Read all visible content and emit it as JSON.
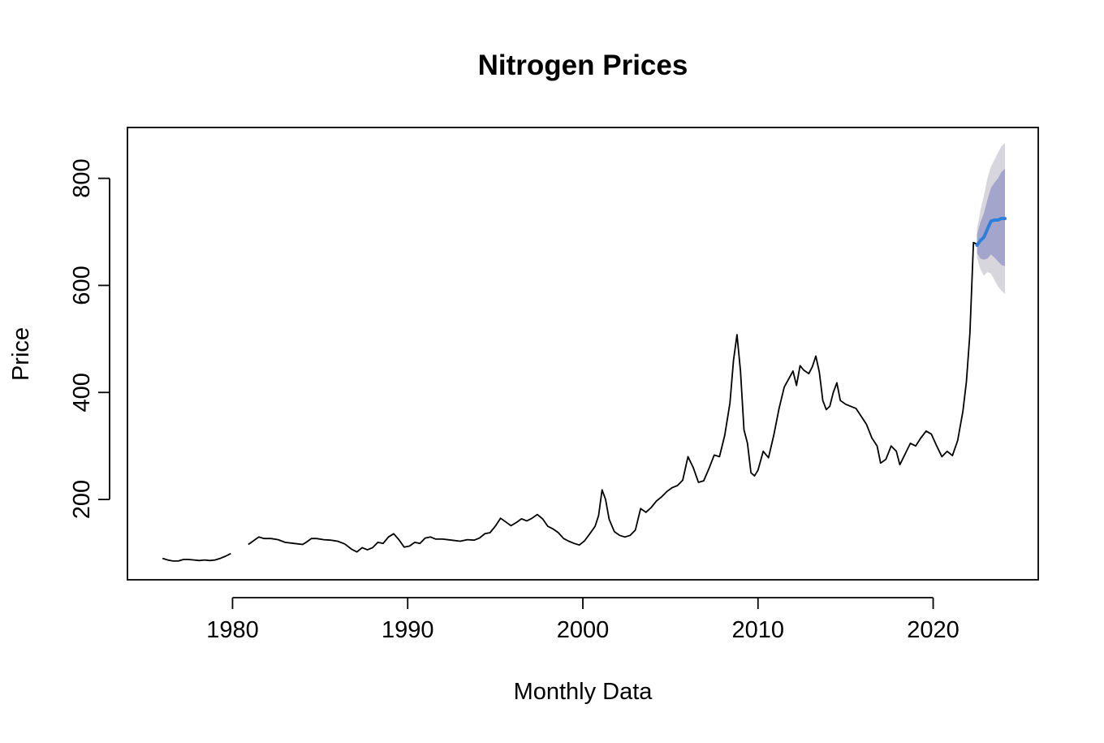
{
  "chart_data": {
    "type": "line",
    "title": "Nitrogen Prices",
    "xlabel": "Monthly Data",
    "ylabel": "Price",
    "xlim": [
      1974,
      2026
    ],
    "ylim": [
      50,
      895
    ],
    "x_ticks": [
      1980,
      1990,
      2000,
      2010,
      2020
    ],
    "y_ticks": [
      200,
      400,
      600,
      800
    ],
    "grid": false,
    "legend": "none",
    "colors": {
      "history": "#000000",
      "forecast": "#2f7ed8",
      "band_95": "#d6d6dc",
      "band_80": "#a3a5cc"
    },
    "series": [
      {
        "role": "history",
        "segments": [
          [
            [
              1976.0,
              90
            ],
            [
              1976.3,
              87
            ],
            [
              1976.6,
              85
            ],
            [
              1976.9,
              85
            ],
            [
              1977.2,
              88
            ],
            [
              1977.5,
              88
            ],
            [
              1977.8,
              87
            ],
            [
              1978.1,
              86
            ],
            [
              1978.4,
              87
            ],
            [
              1978.7,
              86
            ],
            [
              1979.0,
              87
            ],
            [
              1979.3,
              90
            ],
            [
              1979.6,
              94
            ],
            [
              1979.9,
              99
            ]
          ],
          [
            [
              1980.9,
              116
            ],
            [
              1981.2,
              123
            ],
            [
              1981.5,
              130
            ],
            [
              1981.8,
              127
            ],
            [
              1982.2,
              127
            ],
            [
              1982.6,
              125
            ],
            [
              1983.0,
              120
            ],
            [
              1983.5,
              118
            ],
            [
              1984.0,
              116
            ],
            [
              1984.2,
              120
            ],
            [
              1984.5,
              127
            ],
            [
              1984.8,
              127
            ],
            [
              1985.2,
              125
            ],
            [
              1985.6,
              124
            ],
            [
              1986.0,
              122
            ],
            [
              1986.4,
              117
            ],
            [
              1986.8,
              107
            ],
            [
              1987.1,
              102
            ],
            [
              1987.4,
              110
            ],
            [
              1987.7,
              106
            ],
            [
              1988.0,
              110
            ],
            [
              1988.3,
              120
            ],
            [
              1988.6,
              118
            ],
            [
              1988.9,
              130
            ],
            [
              1989.2,
              136
            ],
            [
              1989.5,
              125
            ],
            [
              1989.8,
              111
            ],
            [
              1990.1,
              113
            ],
            [
              1990.4,
              120
            ],
            [
              1990.7,
              118
            ],
            [
              1991.0,
              128
            ],
            [
              1991.3,
              130
            ],
            [
              1991.6,
              126
            ],
            [
              1992.0,
              126
            ],
            [
              1992.5,
              124
            ],
            [
              1993.0,
              122
            ],
            [
              1993.4,
              125
            ],
            [
              1993.8,
              124
            ],
            [
              1994.1,
              128
            ],
            [
              1994.4,
              136
            ],
            [
              1994.7,
              138
            ],
            [
              1995.0,
              150
            ],
            [
              1995.3,
              165
            ],
            [
              1995.6,
              158
            ],
            [
              1995.9,
              151
            ],
            [
              1996.2,
              157
            ],
            [
              1996.5,
              164
            ],
            [
              1996.8,
              160
            ],
            [
              1997.1,
              165
            ],
            [
              1997.4,
              172
            ],
            [
              1997.7,
              164
            ],
            [
              1998.0,
              150
            ],
            [
              1998.3,
              145
            ],
            [
              1998.6,
              138
            ],
            [
              1998.9,
              127
            ],
            [
              1999.2,
              122
            ],
            [
              1999.5,
              118
            ],
            [
              1999.8,
              115
            ],
            [
              2000.1,
              123
            ],
            [
              2000.4,
              136
            ],
            [
              2000.7,
              150
            ],
            [
              2000.9,
              170
            ],
            [
              2001.1,
              218
            ],
            [
              2001.3,
              200
            ],
            [
              2001.5,
              163
            ],
            [
              2001.8,
              140
            ],
            [
              2002.1,
              133
            ],
            [
              2002.4,
              130
            ],
            [
              2002.7,
              133
            ],
            [
              2003.0,
              143
            ],
            [
              2003.3,
              183
            ],
            [
              2003.6,
              176
            ],
            [
              2003.9,
              185
            ],
            [
              2004.2,
              197
            ],
            [
              2004.5,
              205
            ],
            [
              2004.8,
              215
            ],
            [
              2005.1,
              222
            ],
            [
              2005.4,
              226
            ],
            [
              2005.7,
              236
            ],
            [
              2006.0,
              280
            ],
            [
              2006.3,
              260
            ],
            [
              2006.6,
              232
            ],
            [
              2006.9,
              235
            ],
            [
              2007.2,
              258
            ],
            [
              2007.5,
              283
            ],
            [
              2007.8,
              280
            ],
            [
              2008.1,
              320
            ],
            [
              2008.4,
              380
            ],
            [
              2008.6,
              460
            ],
            [
              2008.8,
              508
            ],
            [
              2009.0,
              440
            ],
            [
              2009.2,
              330
            ],
            [
              2009.4,
              305
            ],
            [
              2009.6,
              250
            ],
            [
              2009.8,
              244
            ],
            [
              2010.0,
              255
            ],
            [
              2010.3,
              290
            ],
            [
              2010.6,
              278
            ],
            [
              2010.9,
              320
            ],
            [
              2011.2,
              370
            ],
            [
              2011.5,
              410
            ],
            [
              2011.8,
              428
            ],
            [
              2012.0,
              440
            ],
            [
              2012.2,
              413
            ],
            [
              2012.4,
              450
            ],
            [
              2012.6,
              442
            ],
            [
              2012.9,
              435
            ],
            [
              2013.1,
              448
            ],
            [
              2013.3,
              468
            ],
            [
              2013.5,
              438
            ],
            [
              2013.7,
              385
            ],
            [
              2013.9,
              368
            ],
            [
              2014.1,
              374
            ],
            [
              2014.3,
              400
            ],
            [
              2014.5,
              418
            ],
            [
              2014.7,
              385
            ],
            [
              2015.0,
              378
            ],
            [
              2015.3,
              374
            ],
            [
              2015.6,
              370
            ],
            [
              2015.9,
              355
            ],
            [
              2016.2,
              340
            ],
            [
              2016.5,
              315
            ],
            [
              2016.8,
              300
            ],
            [
              2017.0,
              268
            ],
            [
              2017.3,
              275
            ],
            [
              2017.6,
              300
            ],
            [
              2017.9,
              290
            ],
            [
              2018.1,
              265
            ],
            [
              2018.4,
              285
            ],
            [
              2018.7,
              305
            ],
            [
              2019.0,
              300
            ],
            [
              2019.3,
              315
            ],
            [
              2019.6,
              328
            ],
            [
              2019.9,
              322
            ],
            [
              2020.2,
              300
            ],
            [
              2020.5,
              280
            ],
            [
              2020.8,
              290
            ],
            [
              2021.1,
              282
            ],
            [
              2021.4,
              310
            ],
            [
              2021.7,
              365
            ],
            [
              2021.9,
              420
            ],
            [
              2022.1,
              510
            ],
            [
              2022.3,
              680
            ],
            [
              2022.5,
              677
            ]
          ]
        ]
      },
      {
        "role": "forecast",
        "name": "",
        "points": [
          [
            2022.5,
            675
          ],
          [
            2022.7,
            684
          ],
          [
            2022.9,
            690
          ],
          [
            2023.1,
            705
          ],
          [
            2023.3,
            720
          ],
          [
            2023.5,
            722
          ],
          [
            2023.7,
            722
          ],
          [
            2023.9,
            725
          ],
          [
            2024.1,
            725
          ]
        ],
        "lo80": [
          [
            2022.5,
            660
          ],
          [
            2022.7,
            650
          ],
          [
            2022.9,
            648
          ],
          [
            2023.1,
            650
          ],
          [
            2023.3,
            658
          ],
          [
            2023.5,
            652
          ],
          [
            2023.7,
            645
          ],
          [
            2023.9,
            638
          ],
          [
            2024.1,
            636
          ]
        ],
        "hi80": [
          [
            2022.5,
            695
          ],
          [
            2022.7,
            718
          ],
          [
            2022.9,
            735
          ],
          [
            2023.1,
            760
          ],
          [
            2023.3,
            782
          ],
          [
            2023.5,
            792
          ],
          [
            2023.7,
            800
          ],
          [
            2023.9,
            812
          ],
          [
            2024.1,
            818
          ]
        ],
        "lo95": [
          [
            2022.5,
            652
          ],
          [
            2022.7,
            630
          ],
          [
            2022.9,
            618
          ],
          [
            2023.1,
            625
          ],
          [
            2023.3,
            622
          ],
          [
            2023.5,
            610
          ],
          [
            2023.7,
            598
          ],
          [
            2023.9,
            590
          ],
          [
            2024.1,
            584
          ]
        ],
        "hi95": [
          [
            2022.5,
            705
          ],
          [
            2022.7,
            740
          ],
          [
            2022.9,
            768
          ],
          [
            2023.1,
            800
          ],
          [
            2023.3,
            822
          ],
          [
            2023.5,
            835
          ],
          [
            2023.7,
            848
          ],
          [
            2023.9,
            860
          ],
          [
            2024.1,
            866
          ]
        ]
      }
    ]
  }
}
